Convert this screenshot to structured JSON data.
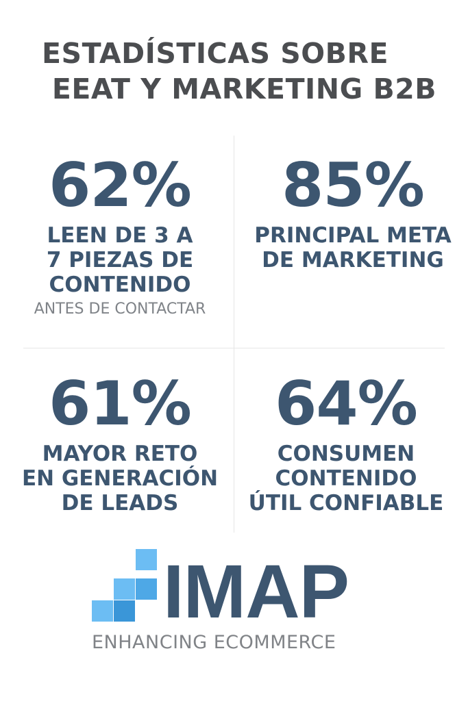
{
  "title": {
    "line1": "ESTADÍSTICAS SOBRE",
    "line2": "EEAT Y MARKETING B2B"
  },
  "stats": [
    {
      "value": "62%",
      "lines": [
        "LEEN DE 3 A",
        "7 PIEZAS DE",
        "CONTENIDO"
      ],
      "sub": "ANTES DE CONTACTAR"
    },
    {
      "value": "85%",
      "lines": [
        "PRINCIPAL META",
        "DE MARKETING"
      ]
    },
    {
      "value": "61%",
      "lines": [
        "MAYOR RETO",
        "EN GENERACIÓN",
        "DE LEADS"
      ]
    },
    {
      "value": "64%",
      "lines": [
        "CONSUMEN",
        "CONTENIDO",
        "ÚTIL CONFIABLE"
      ]
    }
  ],
  "logo": {
    "wordmark": "IMAP",
    "tagline": "ENHANCING ECOMMERCE"
  },
  "colors": {
    "title": "#4b4d50",
    "stat_text": "#3d5670",
    "sub_text": "#7f8388",
    "logo_light_blue": "#6cbdf3",
    "logo_mid_blue": "#4ea8e6",
    "logo_dark_blue": "#3a96d8"
  }
}
